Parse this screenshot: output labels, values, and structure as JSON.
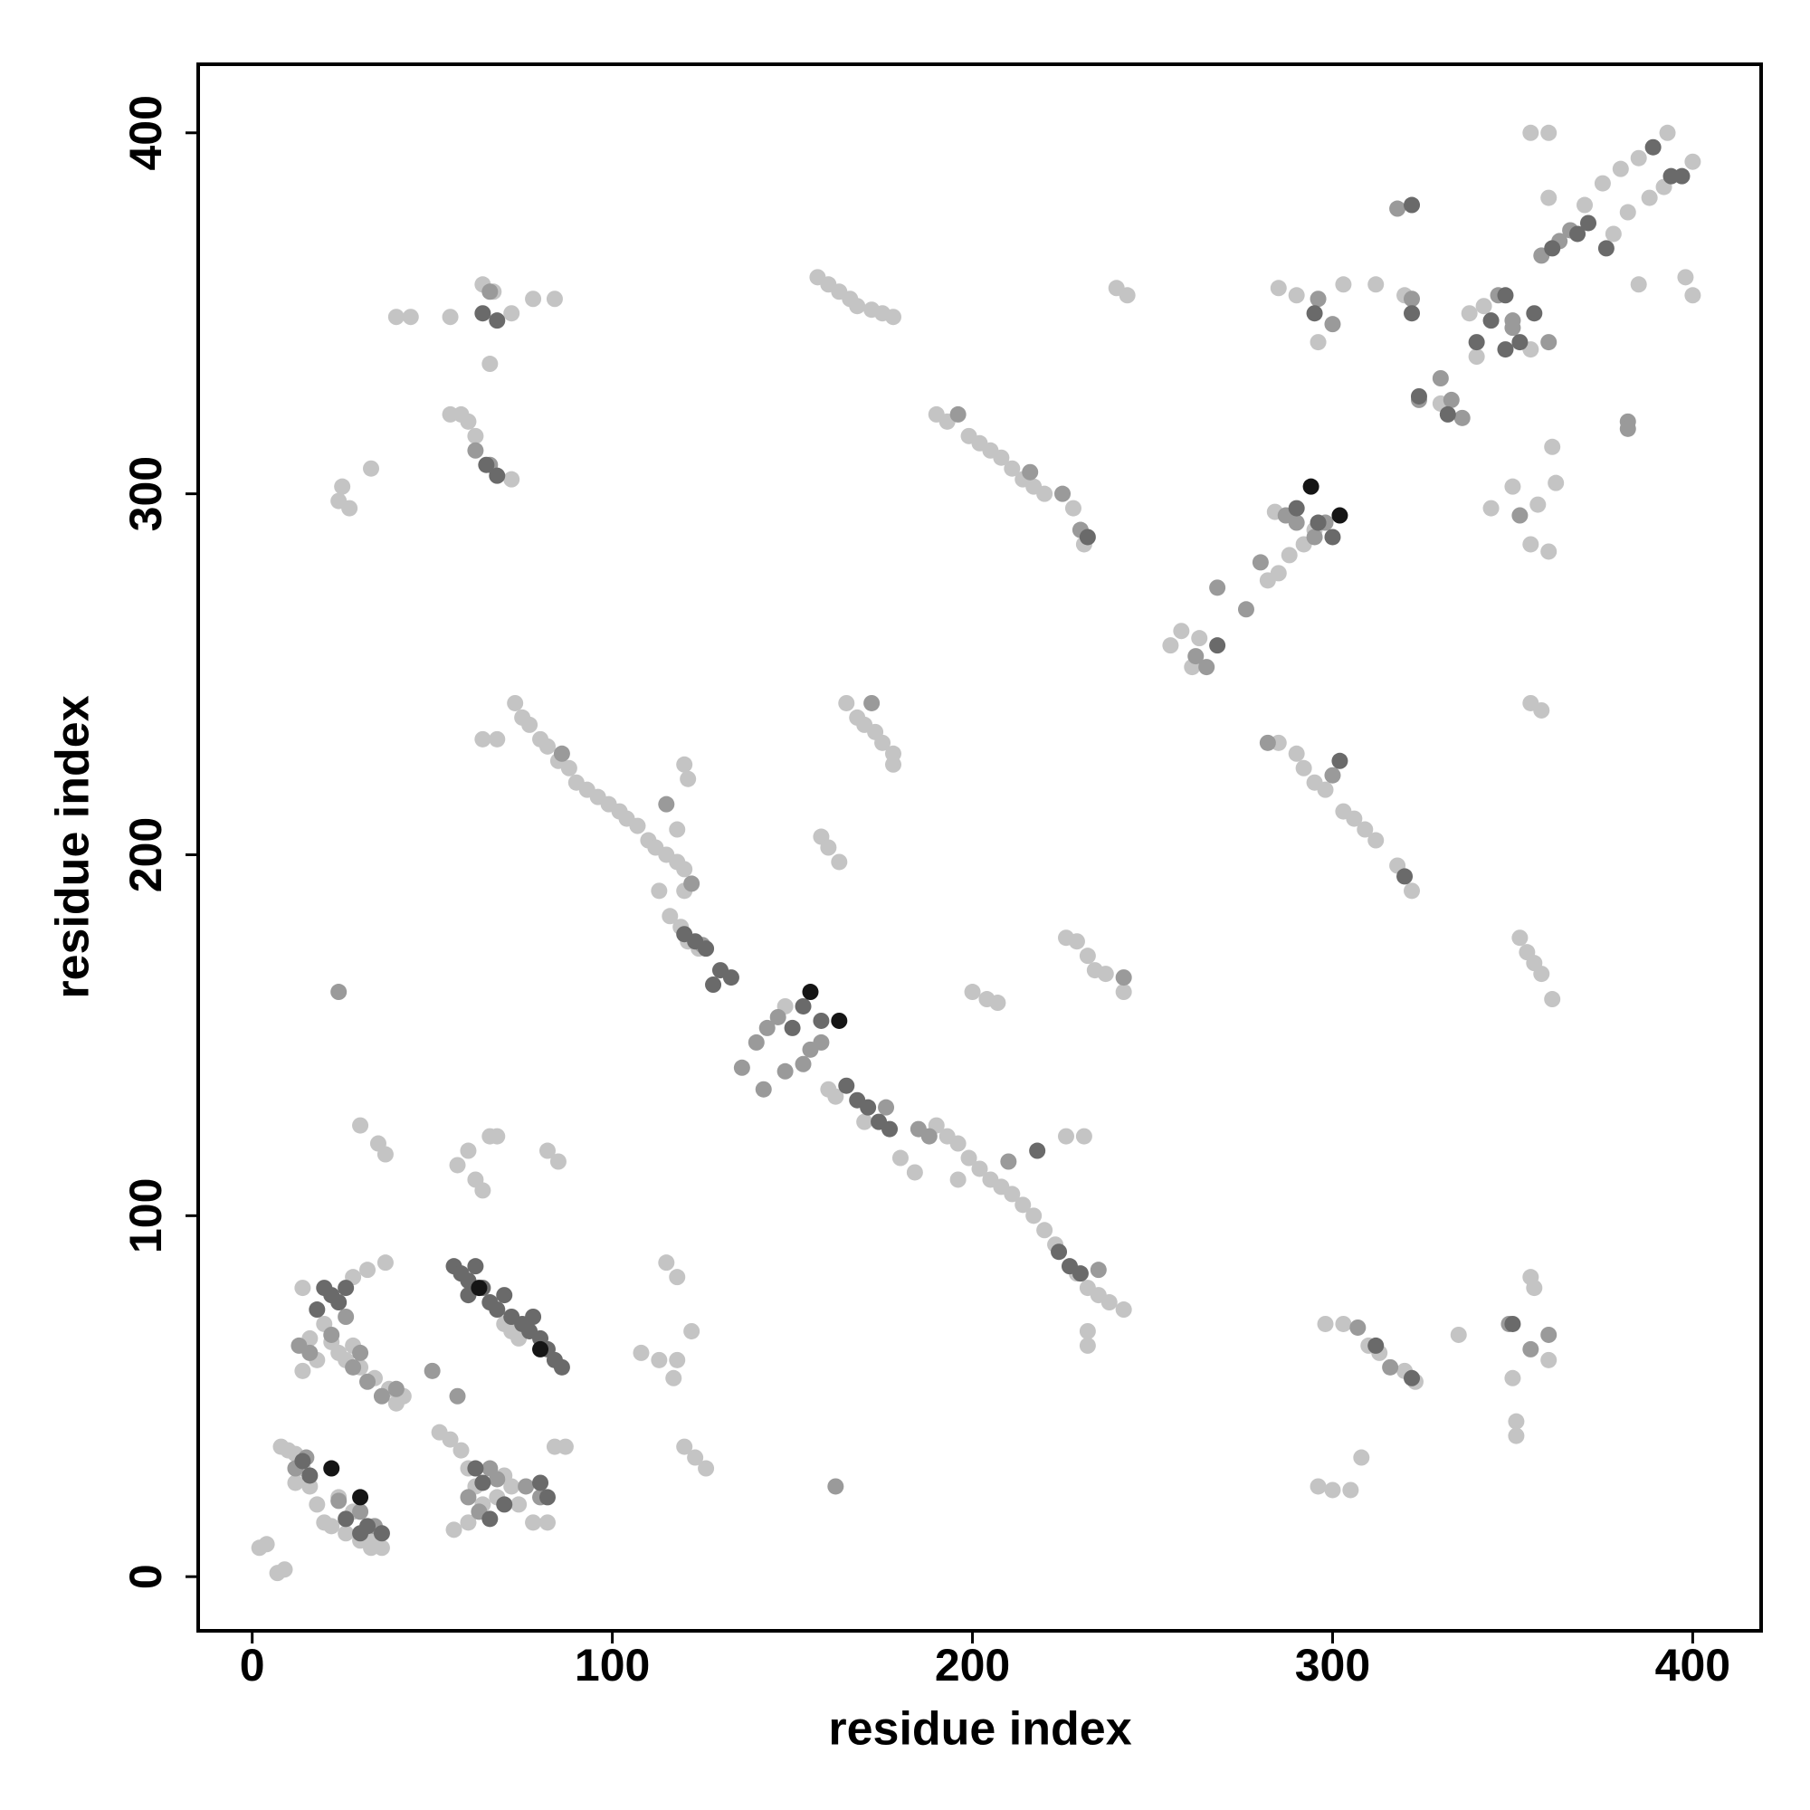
{
  "chart_data": {
    "type": "scatter",
    "x_label": "residue index",
    "y_label": "residue index",
    "xlim": [
      -15,
      419
    ],
    "ylim": [
      -15,
      419
    ],
    "xticks": [
      0,
      100,
      200,
      300,
      400
    ],
    "yticks": [
      0,
      100,
      200,
      300,
      400
    ],
    "grid": false,
    "series": [
      {
        "color": "#c4c4c4",
        "x": [
          2,
          4,
          7,
          9,
          8,
          10,
          12,
          14,
          16,
          18,
          20,
          22,
          26,
          30,
          33,
          36,
          34,
          28,
          24,
          12,
          14,
          16,
          18,
          20,
          22,
          24,
          26,
          28,
          30,
          34,
          38,
          40,
          42,
          14,
          30,
          35,
          37,
          28,
          32,
          37,
          52,
          55,
          58,
          60,
          62,
          64,
          68,
          70,
          60,
          56,
          74,
          78,
          82,
          84,
          87,
          72,
          70,
          72,
          74,
          57,
          60,
          62,
          64,
          66,
          68,
          82,
          85,
          108,
          113,
          117,
          118,
          122,
          115,
          118,
          120,
          123,
          126,
          73,
          75,
          77,
          80,
          82,
          85,
          88,
          90,
          93,
          96,
          99,
          102,
          104,
          107,
          110,
          112,
          115,
          118,
          120,
          116,
          119,
          121,
          124,
          113,
          120,
          64,
          68,
          120,
          121,
          118,
          148,
          160,
          162,
          170,
          180,
          184,
          190,
          193,
          196,
          199,
          202,
          205,
          208,
          211,
          214,
          217,
          220,
          223,
          229,
          232,
          235,
          238,
          242,
          196,
          226,
          231,
          232,
          232,
          158,
          160,
          163,
          165,
          168,
          170,
          173,
          175,
          178,
          178,
          200,
          204,
          207,
          226,
          229,
          232,
          234,
          237,
          242,
          157,
          160,
          163,
          166,
          168,
          172,
          175,
          178,
          190,
          193,
          199,
          202,
          205,
          208,
          211,
          214,
          217,
          220,
          228,
          231,
          240,
          243,
          255,
          258,
          261,
          263,
          285,
          288,
          292,
          295,
          284,
          282,
          285,
          290,
          292,
          295,
          298,
          303,
          306,
          309,
          312,
          318,
          322,
          352,
          354,
          356,
          358,
          361,
          355,
          358,
          298,
          303,
          310,
          313,
          320,
          323,
          335,
          350,
          351,
          351,
          355,
          356,
          360,
          296,
          300,
          305,
          308,
          285,
          290,
          303,
          312,
          320,
          296,
          350,
          357,
          355,
          360,
          362,
          361,
          344,
          355,
          360,
          360,
          385,
          398,
          400,
          370,
          375,
          380,
          385,
          393,
          400,
          382,
          378,
          388,
          392,
          342,
          340,
          355,
          338,
          330,
          58,
          60,
          62,
          72,
          55,
          25,
          24,
          27,
          33,
          64,
          67,
          72,
          78,
          84,
          44,
          40,
          55,
          66
        ],
        "y": [
          8,
          9,
          1,
          2,
          36,
          35,
          34,
          30,
          25,
          20,
          15,
          14,
          12,
          10,
          8,
          8,
          11,
          18,
          22,
          26,
          80,
          66,
          60,
          70,
          65,
          62,
          60,
          64,
          58,
          55,
          52,
          48,
          50,
          57,
          125,
          120,
          117,
          83,
          85,
          87,
          40,
          38,
          35,
          30,
          25,
          20,
          22,
          28,
          15,
          13,
          20,
          15,
          15,
          36,
          36,
          25,
          70,
          68,
          66,
          114,
          118,
          110,
          107,
          122,
          122,
          118,
          115,
          62,
          60,
          55,
          60,
          68,
          87,
          83,
          36,
          33,
          30,
          242,
          238,
          236,
          232,
          230,
          226,
          224,
          220,
          218,
          216,
          214,
          212,
          210,
          208,
          204,
          202,
          200,
          198,
          196,
          183,
          180,
          176,
          174,
          190,
          190,
          232,
          232,
          225,
          221,
          207,
          158,
          135,
          133,
          126,
          116,
          112,
          125,
          122,
          120,
          116,
          113,
          110,
          108,
          106,
          103,
          100,
          96,
          92,
          84,
          80,
          78,
          76,
          74,
          110,
          122,
          122,
          68,
          64,
          205,
          202,
          198,
          242,
          238,
          236,
          234,
          231,
          228,
          225,
          162,
          160,
          159,
          177,
          176,
          172,
          168,
          167,
          162,
          360,
          358,
          356,
          354,
          352,
          351,
          350,
          349,
          322,
          320,
          316,
          314,
          312,
          310,
          307,
          304,
          302,
          300,
          296,
          286,
          357,
          355,
          258,
          262,
          252,
          260,
          278,
          283,
          286,
          290,
          295,
          276,
          231,
          228,
          224,
          220,
          218,
          212,
          210,
          207,
          204,
          197,
          190,
          177,
          173,
          170,
          167,
          160,
          242,
          240,
          70,
          70,
          64,
          62,
          57,
          54,
          67,
          55,
          43,
          39,
          83,
          80,
          60,
          25,
          24,
          24,
          33,
          357,
          355,
          358,
          358,
          355,
          342,
          302,
          297,
          286,
          284,
          303,
          313,
          296,
          400,
          400,
          382,
          358,
          360,
          355,
          380,
          386,
          390,
          393,
          400,
          392,
          378,
          372,
          382,
          385,
          352,
          338,
          340,
          350,
          325,
          322,
          320,
          316,
          304,
          322,
          302,
          298,
          296,
          307,
          358,
          356,
          350,
          354,
          354,
          349,
          349,
          349,
          336
        ]
      },
      {
        "color": "#9a9a9a",
        "x": [
          13,
          16,
          22,
          26,
          28,
          30,
          32,
          36,
          40,
          50,
          57,
          12,
          15,
          24,
          30,
          34,
          60,
          63,
          66,
          68,
          76,
          80,
          24,
          115,
          162,
          210,
          140,
          143,
          146,
          148,
          153,
          155,
          158,
          142,
          136,
          262,
          265,
          268,
          276,
          280,
          287,
          290,
          295,
          298,
          282,
          300,
          242,
          176,
          172,
          86,
          322,
          324,
          333,
          346,
          350,
          358,
          363,
          366,
          350,
          330,
          352,
          360,
          336,
          382,
          382,
          307,
          316,
          349,
          355,
          360,
          296,
          300,
          318,
          62,
          66,
          66,
          225,
          230,
          196,
          216,
          122,
          125,
          235,
          185,
          188
        ],
        "y": [
          64,
          62,
          67,
          72,
          58,
          62,
          54,
          50,
          52,
          57,
          50,
          30,
          33,
          21,
          18,
          14,
          22,
          18,
          30,
          27,
          25,
          22,
          162,
          214,
          25,
          115,
          148,
          152,
          155,
          140,
          142,
          146,
          148,
          135,
          141,
          255,
          252,
          274,
          268,
          281,
          294,
          292,
          288,
          292,
          231,
          222,
          166,
          130,
          242,
          228,
          354,
          326,
          326,
          355,
          346,
          366,
          370,
          373,
          348,
          332,
          294,
          342,
          321,
          320,
          318,
          69,
          58,
          70,
          63,
          67,
          354,
          347,
          379,
          312,
          308,
          356,
          300,
          290,
          322,
          306,
          192,
          175,
          85,
          124,
          122
        ]
      },
      {
        "color": "#6a6a6a",
        "x": [
          20,
          22,
          24,
          26,
          18,
          56,
          58,
          60,
          62,
          64,
          66,
          68,
          75,
          77,
          80,
          82,
          84,
          86,
          70,
          72,
          78,
          60,
          62,
          64,
          66,
          70,
          80,
          82,
          14,
          16,
          26,
          30,
          32,
          36,
          120,
          123,
          126,
          130,
          133,
          128,
          165,
          168,
          171,
          174,
          177,
          224,
          227,
          230,
          218,
          348,
          344,
          348,
          352,
          340,
          356,
          361,
          368,
          371,
          376,
          394,
          397,
          389,
          332,
          324,
          322,
          312,
          322,
          350,
          290,
          296,
          300,
          268,
          320,
          295,
          322,
          64,
          68,
          65,
          68,
          150,
          153,
          158,
          232,
          302
        ],
        "y": [
          80,
          78,
          76,
          80,
          74,
          86,
          84,
          82,
          86,
          80,
          76,
          74,
          70,
          68,
          66,
          63,
          60,
          58,
          78,
          72,
          72,
          78,
          30,
          26,
          16,
          20,
          26,
          22,
          32,
          28,
          16,
          12,
          14,
          12,
          178,
          176,
          174,
          168,
          166,
          164,
          136,
          132,
          130,
          126,
          124,
          90,
          86,
          84,
          118,
          355,
          348,
          340,
          342,
          342,
          350,
          368,
          372,
          375,
          368,
          388,
          388,
          396,
          322,
          327,
          350,
          64,
          55,
          70,
          296,
          292,
          288,
          258,
          194,
          350,
          380,
          350,
          348,
          308,
          305,
          152,
          158,
          154,
          288,
          226
        ]
      },
      {
        "color": "#151515",
        "x": [
          22,
          30,
          155,
          163,
          294,
          302,
          63,
          80
        ],
        "y": [
          30,
          22,
          162,
          154,
          302,
          294,
          80,
          63
        ]
      }
    ]
  }
}
